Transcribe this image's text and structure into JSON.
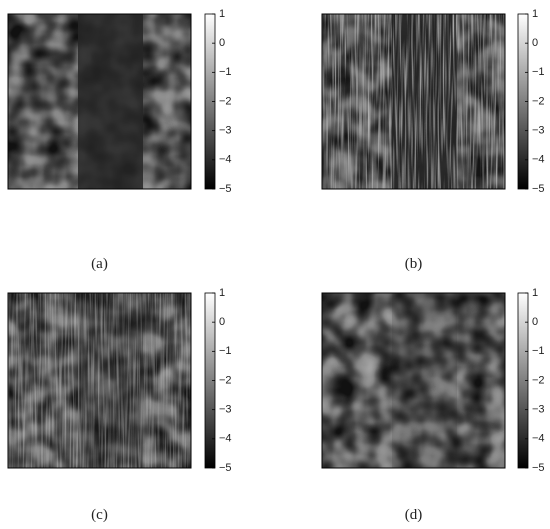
{
  "panels": [
    {
      "label": "(a)",
      "colorbar": {
        "lim": [
          -5,
          1
        ],
        "ticks": [
          1,
          0,
          {
            "value": -1,
            "label": "−1"
          },
          {
            "value": -2,
            "label": "−2"
          },
          {
            "value": -3,
            "label": "−3"
          },
          {
            "value": -4,
            "label": "−4"
          },
          {
            "value": -5,
            "label": "−5"
          }
        ]
      }
    },
    {
      "label": "(b)",
      "colorbar": {
        "lim": [
          -5,
          1
        ],
        "ticks": [
          1,
          0,
          {
            "value": -1,
            "label": "−1"
          },
          {
            "value": -2,
            "label": "−2"
          },
          {
            "value": -3,
            "label": "−3"
          },
          {
            "value": -4,
            "label": "−4"
          },
          {
            "value": -5,
            "label": "−5"
          }
        ]
      }
    },
    {
      "label": "(c)",
      "colorbar": {
        "lim": [
          -5,
          1
        ],
        "ticks": [
          1,
          0,
          {
            "value": -1,
            "label": "−1"
          },
          {
            "value": -2,
            "label": "−2"
          },
          {
            "value": -3,
            "label": "−3"
          },
          {
            "value": -4,
            "label": "−4"
          },
          {
            "value": -5,
            "label": "−5"
          }
        ]
      }
    },
    {
      "label": "(d)",
      "colorbar": {
        "lim": [
          -5,
          1
        ],
        "ticks": [
          1,
          0,
          {
            "value": -1,
            "label": "−1"
          },
          {
            "value": -2,
            "label": "−2"
          },
          {
            "value": -3,
            "label": "−3"
          },
          {
            "value": -4,
            "label": "−4"
          },
          {
            "value": -5,
            "label": "−5"
          }
        ]
      }
    }
  ]
}
